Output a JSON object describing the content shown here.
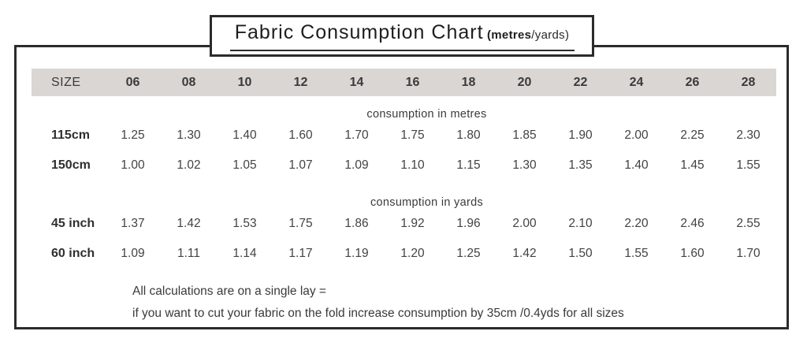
{
  "title": {
    "main": "Fabric Consumption Chart",
    "sub_strong": "(metres",
    "sub_light": "/yards)"
  },
  "chart_data": {
    "type": "table",
    "title": "Fabric Consumption Chart (metres/yards)",
    "size_header": "SIZE",
    "sizes": [
      "06",
      "08",
      "10",
      "12",
      "14",
      "16",
      "18",
      "20",
      "22",
      "24",
      "26",
      "28"
    ],
    "sections": [
      {
        "label": "consumption in metres",
        "rows": [
          {
            "label": "115cm",
            "values": [
              "1.25",
              "1.30",
              "1.40",
              "1.60",
              "1.70",
              "1.75",
              "1.80",
              "1.85",
              "1.90",
              "2.00",
              "2.25",
              "2.30"
            ]
          },
          {
            "label": "150cm",
            "values": [
              "1.00",
              "1.02",
              "1.05",
              "1.07",
              "1.09",
              "1.10",
              "1.15",
              "1.30",
              "1.35",
              "1.40",
              "1.45",
              "1.55"
            ]
          }
        ]
      },
      {
        "label": "consumption in yards",
        "rows": [
          {
            "label": "45 inch",
            "values": [
              "1.37",
              "1.42",
              "1.53",
              "1.75",
              "1.86",
              "1.92",
              "1.96",
              "2.00",
              "2.10",
              "2.20",
              "2.46",
              "2.55"
            ]
          },
          {
            "label": "60 inch",
            "values": [
              "1.09",
              "1.11",
              "1.14",
              "1.17",
              "1.19",
              "1.20",
              "1.25",
              "1.42",
              "1.50",
              "1.55",
              "1.60",
              "1.70"
            ]
          }
        ]
      }
    ]
  },
  "footer": {
    "line1": "All calculations are on a single lay =",
    "line2": "if you want to cut your fabric on the fold increase consumption by 35cm /0.4yds for all sizes"
  },
  "colors": {
    "border": "#2b2b2b",
    "header_band": "#d9d6d3",
    "text": "#3f3f3f"
  }
}
